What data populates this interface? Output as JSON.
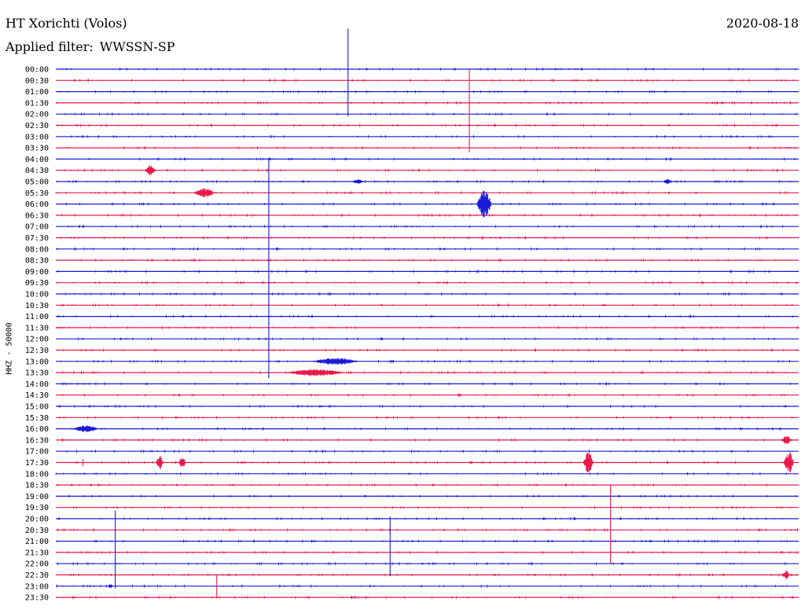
{
  "header": {
    "station": "HT Xorichti (Volos)",
    "date": "2020-08-18",
    "filter_label": "Applied filter:",
    "filter_value": "WWSSN-SP"
  },
  "channel": {
    "label": "HHZ - 50000"
  },
  "colors": {
    "even_line": "#1a1ad6",
    "odd_line": "#e8194a",
    "text": "#000000",
    "background": "#ffffff"
  },
  "chart_data": {
    "type": "line",
    "title": "HT Xorichti (Volos)",
    "subtitle": "Applied filter: WWSSN-SP",
    "ylabel": "HHZ - 50000",
    "x_unit": "minutes within half-hour row",
    "xlim": [
      0,
      30
    ],
    "row_labels": [
      "00:00",
      "00:30",
      "01:00",
      "01:30",
      "02:00",
      "02:30",
      "03:00",
      "03:30",
      "04:00",
      "04:30",
      "05:00",
      "05:30",
      "06:00",
      "06:30",
      "07:00",
      "07:30",
      "08:00",
      "08:30",
      "09:00",
      "09:30",
      "10:00",
      "10:30",
      "11:00",
      "11:30",
      "12:00",
      "12:30",
      "13:00",
      "13:30",
      "14:00",
      "14:30",
      "15:00",
      "15:30",
      "16:00",
      "16:30",
      "17:00",
      "17:30",
      "18:00",
      "18:30",
      "19:00",
      "19:30",
      "20:00",
      "20:30",
      "21:00",
      "21:30",
      "22:00",
      "22:30",
      "23:00",
      "23:30"
    ],
    "events": [
      {
        "row": 0,
        "minute": 11.8,
        "type": "spike",
        "up": 3.6,
        "down": 4.2
      },
      {
        "row": 1,
        "minute": 16.7,
        "type": "spike",
        "up": 1.0,
        "down": 6.4
      },
      {
        "row": 8,
        "minute": 8.6,
        "type": "spike",
        "up": 0.1,
        "down": 19.5
      },
      {
        "row": 9,
        "minute": 3.8,
        "type": "burst",
        "width": 0.4,
        "amp": 0.5
      },
      {
        "row": 10,
        "minute": 12.2,
        "type": "burst",
        "width": 0.5,
        "amp": 0.2
      },
      {
        "row": 10,
        "minute": 24.7,
        "type": "burst",
        "width": 0.3,
        "amp": 0.3
      },
      {
        "row": 11,
        "minute": 6.0,
        "type": "burst",
        "width": 0.9,
        "amp": 0.4
      },
      {
        "row": 12,
        "minute": 17.3,
        "type": "burst",
        "width": 0.6,
        "amp": 1.2
      },
      {
        "row": 26,
        "minute": 11.3,
        "type": "burst",
        "width": 2.0,
        "amp": 0.3
      },
      {
        "row": 27,
        "minute": 10.5,
        "type": "burst",
        "width": 2.5,
        "amp": 0.3
      },
      {
        "row": 32,
        "minute": 1.2,
        "type": "burst",
        "width": 1.1,
        "amp": 0.3
      },
      {
        "row": 33,
        "minute": 29.5,
        "type": "burst",
        "width": 0.4,
        "amp": 0.4
      },
      {
        "row": 35,
        "minute": 1.1,
        "type": "spike",
        "up": 0.3,
        "down": 0.3
      },
      {
        "row": 35,
        "minute": 4.2,
        "type": "burst",
        "width": 0.3,
        "amp": 0.6
      },
      {
        "row": 35,
        "minute": 5.1,
        "type": "burst",
        "width": 0.3,
        "amp": 0.5
      },
      {
        "row": 35,
        "minute": 21.5,
        "type": "burst",
        "width": 0.4,
        "amp": 1.0
      },
      {
        "row": 35,
        "minute": 29.6,
        "type": "burst",
        "width": 0.4,
        "amp": 1.0
      },
      {
        "row": 37,
        "minute": 22.4,
        "type": "spike",
        "up": 0.0,
        "down": 7.0
      },
      {
        "row": 40,
        "minute": 2.4,
        "type": "spike",
        "up": 0.7,
        "down": 6.2
      },
      {
        "row": 40,
        "minute": 13.5,
        "type": "spike",
        "up": 0.2,
        "down": 5.1
      },
      {
        "row": 45,
        "minute": 6.5,
        "type": "spike",
        "up": 0.0,
        "down": 2.1
      },
      {
        "row": 45,
        "minute": 29.5,
        "type": "burst",
        "width": 0.3,
        "amp": 0.4
      },
      {
        "row": 46,
        "minute": 2.2,
        "type": "burst",
        "width": 0.2,
        "amp": 0.2
      }
    ]
  }
}
